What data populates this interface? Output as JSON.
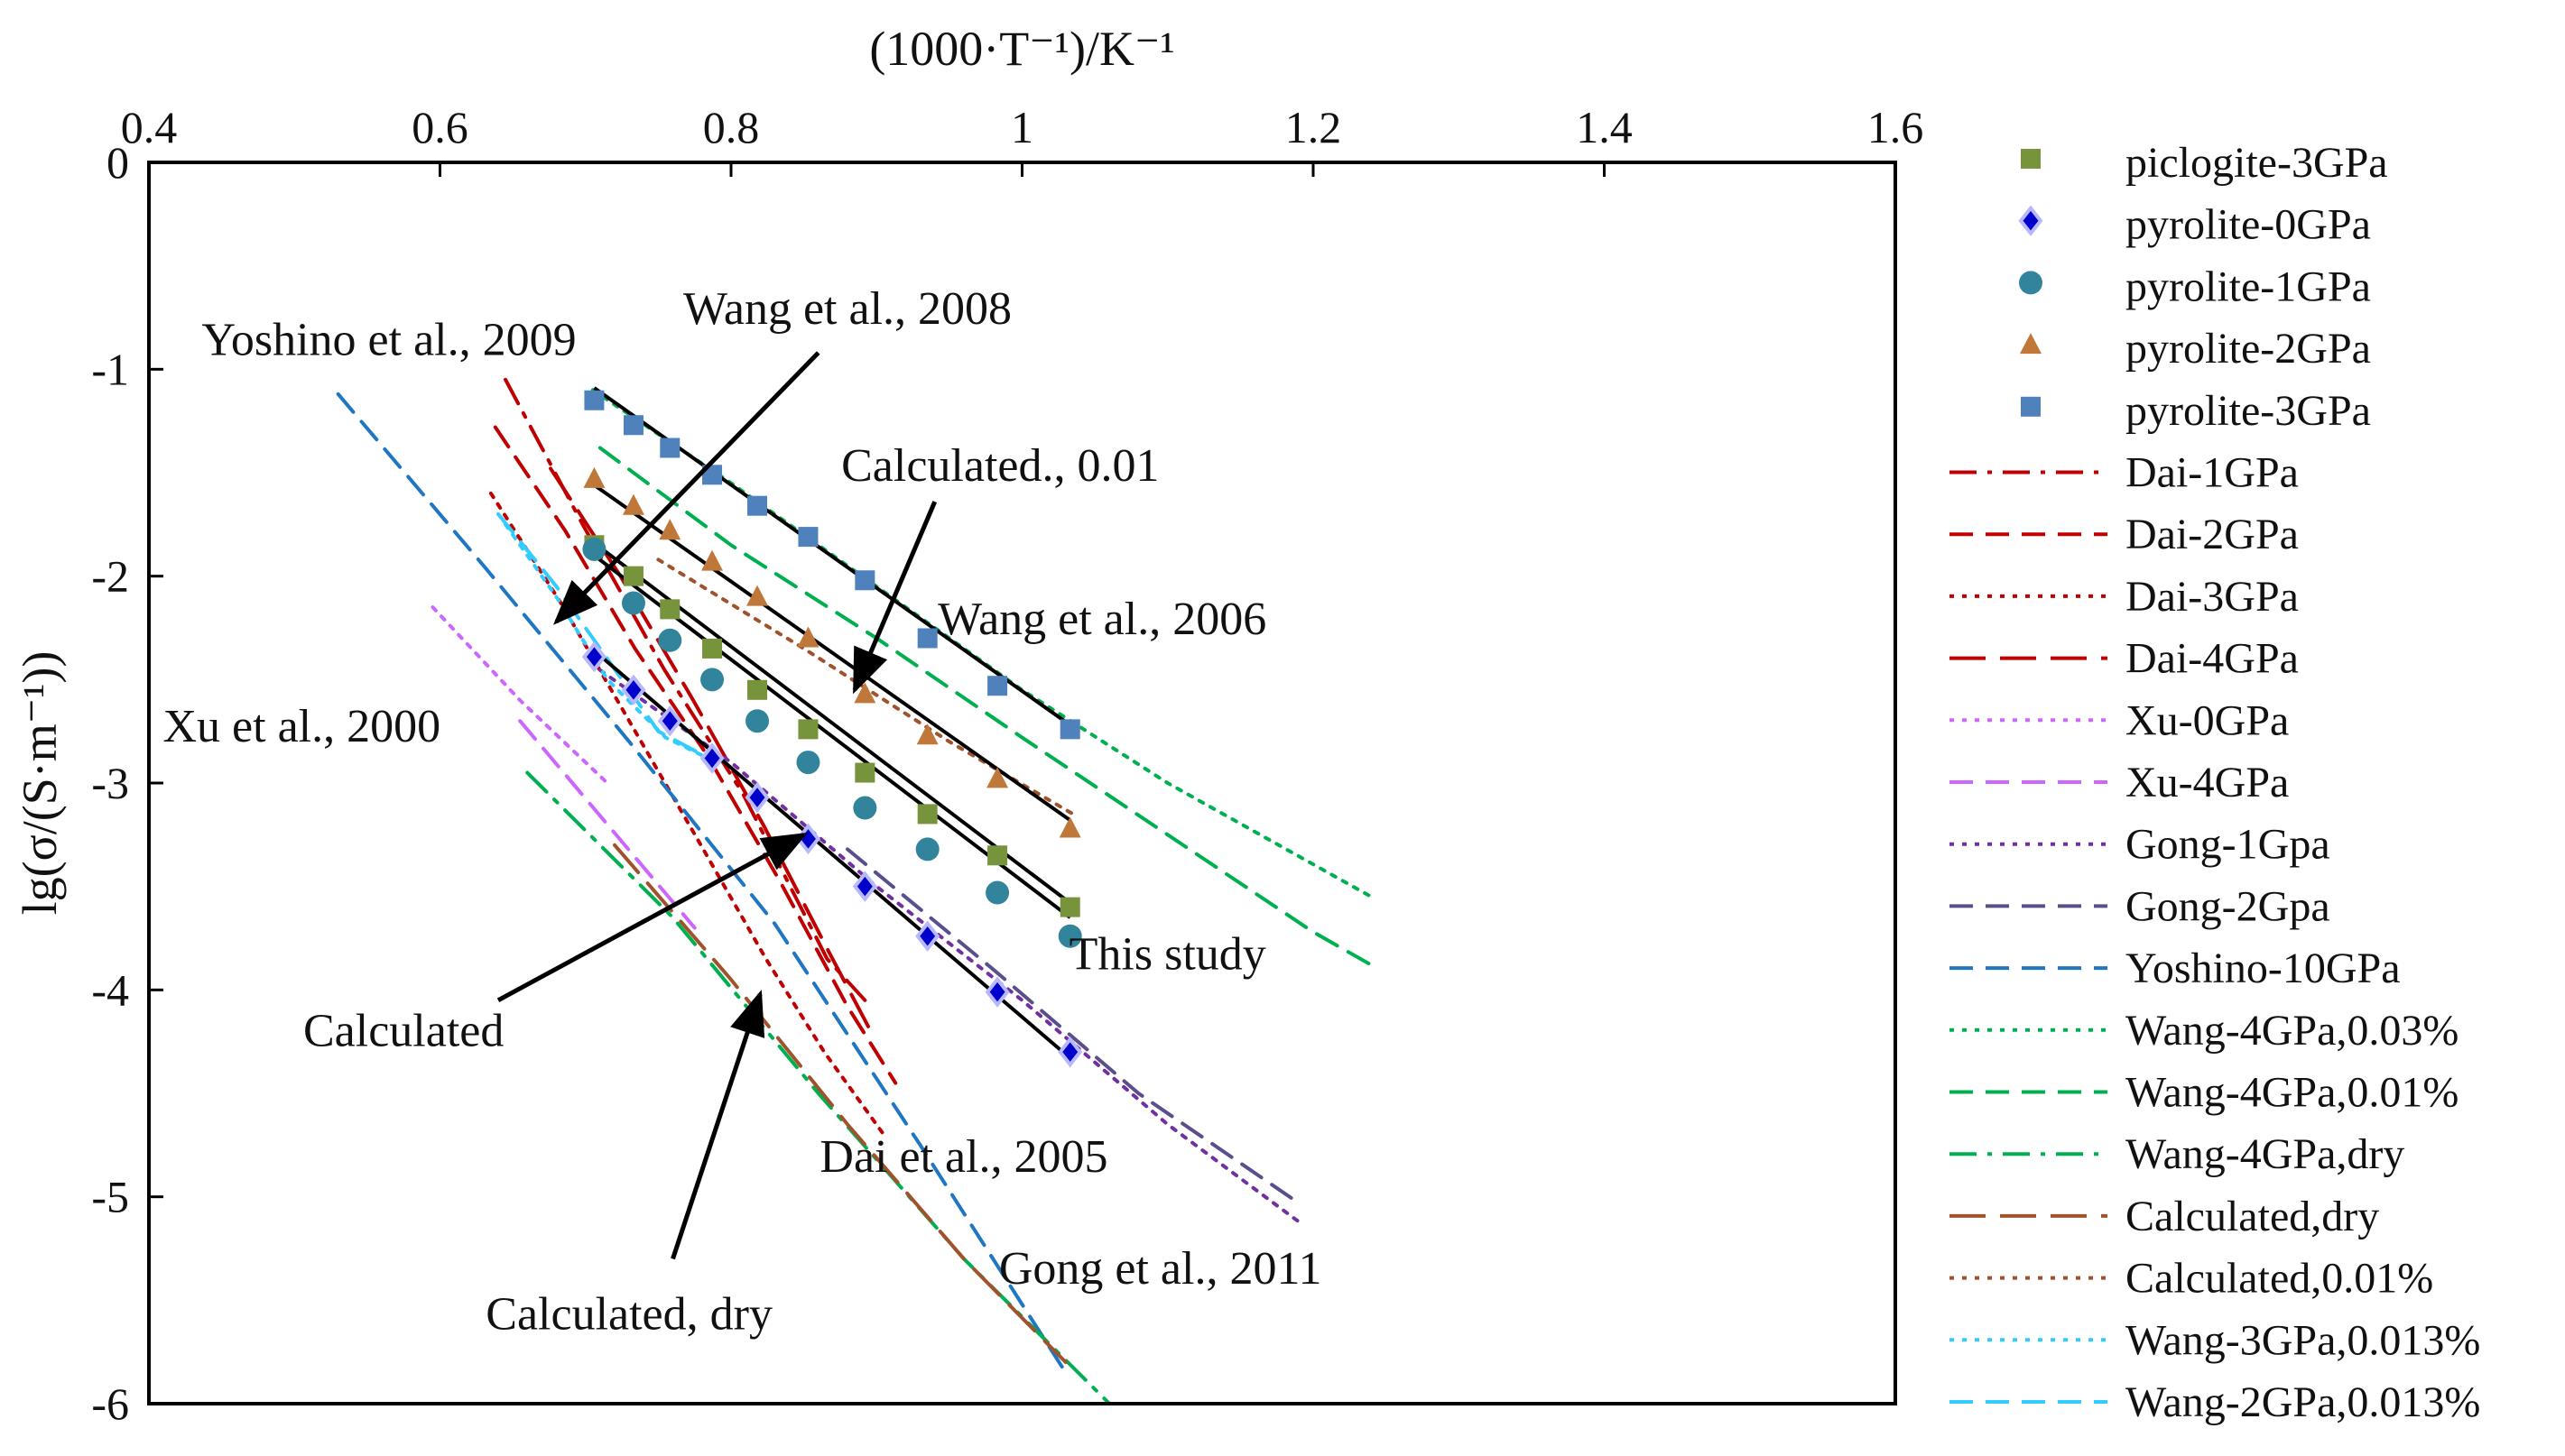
{
  "chart_data": {
    "type": "scatter",
    "title": "",
    "xlabel": "(1000·T⁻¹)/K⁻¹",
    "ylabel": "lg(σ/(S·m⁻¹))",
    "xlim": [
      0.4,
      1.6
    ],
    "ylim": [
      -6,
      0
    ],
    "x_ticks": [
      "0.4",
      "0.6",
      "0.8",
      "1",
      "1.2",
      "1.4",
      "1.6"
    ],
    "y_ticks": [
      "0",
      "-1",
      "-2",
      "-3",
      "-4",
      "-5",
      "-6"
    ],
    "legend_position": "right",
    "point_series": [
      {
        "name": "piclogite-3GPa",
        "marker": "square",
        "color": "#77933C",
        "x": [
          0.706,
          0.733,
          0.758,
          0.787,
          0.818,
          0.853,
          0.892,
          0.935,
          0.983,
          1.033
        ],
        "y": [
          -1.85,
          -2.0,
          -2.16,
          -2.35,
          -2.55,
          -2.74,
          -2.95,
          -3.15,
          -3.35,
          -3.6
        ]
      },
      {
        "name": "pyrolite-0GPa",
        "marker": "diamond",
        "color": "#0000CC",
        "x": [
          0.706,
          0.733,
          0.758,
          0.787,
          0.818,
          0.853,
          0.892,
          0.935,
          0.983,
          1.033
        ],
        "y": [
          -2.39,
          -2.55,
          -2.7,
          -2.88,
          -3.07,
          -3.27,
          -3.5,
          -3.74,
          -4.01,
          -4.3
        ]
      },
      {
        "name": "pyrolite-1GPa",
        "marker": "circle",
        "color": "#31849B",
        "x": [
          0.706,
          0.733,
          0.758,
          0.787,
          0.818,
          0.853,
          0.892,
          0.935,
          0.983,
          1.033
        ],
        "y": [
          -1.87,
          -2.13,
          -2.31,
          -2.5,
          -2.7,
          -2.9,
          -3.12,
          -3.32,
          -3.53,
          -3.74
        ]
      },
      {
        "name": "pyrolite-2GPa",
        "marker": "triangle",
        "color": "#C0783A",
        "x": [
          0.706,
          0.733,
          0.758,
          0.787,
          0.818,
          0.853,
          0.892,
          0.935,
          0.983,
          1.033
        ],
        "y": [
          -1.53,
          -1.66,
          -1.78,
          -1.93,
          -2.1,
          -2.3,
          -2.57,
          -2.77,
          -2.98,
          -3.22
        ]
      },
      {
        "name": "pyrolite-3GPa",
        "marker": "square",
        "color": "#4F81BD",
        "x": [
          0.706,
          0.733,
          0.758,
          0.787,
          0.818,
          0.853,
          0.892,
          0.935,
          0.983,
          1.033
        ],
        "y": [
          -1.15,
          -1.27,
          -1.38,
          -1.51,
          -1.66,
          -1.81,
          -2.02,
          -2.3,
          -2.53,
          -2.74
        ]
      }
    ],
    "line_series": [
      {
        "name": "Dai-1GPa",
        "dash": "dashdot",
        "color": "#C00000",
        "x": [
          0.645,
          0.698,
          0.754,
          0.808,
          0.866,
          0.892
        ],
        "y": [
          -1.05,
          -1.75,
          -2.45,
          -3.05,
          -3.85,
          -4.05
        ]
      },
      {
        "name": "Dai-2GPa",
        "dash": "dash",
        "color": "#C00000",
        "x": [
          0.638,
          0.686,
          0.734,
          0.784,
          0.834,
          0.88,
          0.913
        ],
        "y": [
          -1.28,
          -1.78,
          -2.35,
          -2.87,
          -3.48,
          -4.08,
          -4.45
        ]
      },
      {
        "name": "Dai-3GPa",
        "dash": "dot",
        "color": "#C00000",
        "x": [
          0.635,
          0.684,
          0.73,
          0.776,
          0.824,
          0.864,
          0.905
        ],
        "y": [
          -1.6,
          -2.14,
          -2.7,
          -3.26,
          -3.85,
          -4.3,
          -4.7
        ]
      },
      {
        "name": "Dai-4GPa",
        "dash": "longdash",
        "color": "#C00000",
        "x": [
          0.676,
          0.724,
          0.774,
          0.822,
          0.866,
          0.896
        ],
        "y": [
          -1.48,
          -2.0,
          -2.6,
          -3.2,
          -3.8,
          -4.2
        ]
      },
      {
        "name": "Xu-0GPa",
        "dash": "dot",
        "color": "#CC66FF",
        "x": [
          0.595,
          0.655,
          0.715
        ],
        "y": [
          -2.15,
          -2.6,
          -3.0
        ]
      },
      {
        "name": "Xu-4GPa",
        "dash": "dash",
        "color": "#CC66FF",
        "x": [
          0.655,
          0.715,
          0.775
        ],
        "y": [
          -2.7,
          -3.2,
          -3.7
        ]
      },
      {
        "name": "Gong-1Gpa",
        "dash": "dot",
        "color": "#7030A0",
        "x": [
          0.703,
          0.8,
          0.9,
          1.0,
          1.1,
          1.19
        ],
        "y": [
          -2.42,
          -2.9,
          -3.5,
          -4.05,
          -4.65,
          -5.12
        ]
      },
      {
        "name": "Gong-2Gpa",
        "dash": "dash",
        "color": "#5A4E8C",
        "x": [
          0.88,
          0.98,
          1.08,
          1.19
        ],
        "y": [
          -3.32,
          -3.9,
          -4.5,
          -5.03
        ]
      },
      {
        "name": "Yoshino-10GPa",
        "dash": "dash",
        "color": "#1F77C4",
        "x": [
          0.53,
          0.63,
          0.73,
          0.83,
          0.93,
          1.03
        ],
        "y": [
          -1.12,
          -1.95,
          -2.8,
          -3.68,
          -4.75,
          -5.85
        ]
      },
      {
        "name": "Wang-4GPa,0.03%",
        "dash": "dot",
        "color": "#00B050",
        "x": [
          0.705,
          0.8,
          0.9,
          1.0,
          1.1,
          1.24
        ],
        "y": [
          -1.1,
          -1.55,
          -2.05,
          -2.55,
          -3.0,
          -3.55
        ]
      },
      {
        "name": "Wang-4GPa,0.01%",
        "dash": "dash",
        "color": "#00B050",
        "x": [
          0.71,
          0.8,
          0.9,
          1.0,
          1.1,
          1.2,
          1.245
        ],
        "y": [
          -1.38,
          -1.85,
          -2.3,
          -2.78,
          -3.25,
          -3.72,
          -3.9
        ]
      },
      {
        "name": "Wang-4GPa,dry",
        "dash": "dashdot",
        "color": "#00B050",
        "x": [
          0.66,
          0.76,
          0.86,
          0.96,
          1.06
        ],
        "y": [
          -2.95,
          -3.65,
          -4.5,
          -5.3,
          -6.0
        ]
      },
      {
        "name": "Calculated,dry",
        "dash": "longdash",
        "color": "#A0522D",
        "x": [
          0.72,
          0.8,
          0.88,
          0.96,
          1.03
        ],
        "y": [
          -3.3,
          -3.95,
          -4.65,
          -5.3,
          -5.8
        ]
      },
      {
        "name": "Calculated,0.01%",
        "dash": "dot",
        "color": "#A0522D",
        "x": [
          0.75,
          0.85,
          0.95,
          1.035
        ],
        "y": [
          -1.92,
          -2.35,
          -2.8,
          -3.15
        ]
      },
      {
        "name": "Wang-3GPa,0.013%",
        "dash": "dot",
        "color": "#33CCFF",
        "x": [
          0.645,
          0.68,
          0.715,
          0.755,
          0.79
        ],
        "y": [
          -1.75,
          -2.1,
          -2.5,
          -2.78,
          -2.9
        ]
      },
      {
        "name": "Wang-2GPa,0.013%",
        "dash": "dash",
        "color": "#33CCFF",
        "x": [
          0.64,
          0.68,
          0.72,
          0.75,
          0.79
        ],
        "y": [
          -1.7,
          -2.05,
          -2.45,
          -2.75,
          -2.9
        ]
      }
    ],
    "fit_lines": [
      {
        "name": "fit-pyrolite-3GPa",
        "x": [
          0.706,
          1.033
        ],
        "y": [
          -1.09,
          -2.72
        ]
      },
      {
        "name": "fit-pyrolite-2GPa",
        "x": [
          0.706,
          1.033
        ],
        "y": [
          -1.56,
          -3.18
        ]
      },
      {
        "name": "fit-pyrolite-1GPa",
        "x": [
          0.706,
          1.033
        ],
        "y": [
          -1.9,
          -3.65
        ]
      },
      {
        "name": "fit-piclogite-3GPa",
        "x": [
          0.706,
          1.033
        ],
        "y": [
          -1.84,
          -3.58
        ]
      },
      {
        "name": "fit-pyrolite-0GPa",
        "x": [
          0.706,
          1.033
        ],
        "y": [
          -2.36,
          -4.33
        ]
      }
    ],
    "annotations": [
      {
        "text": "Wang et al., 2008",
        "x": 0.88,
        "y": -0.78
      },
      {
        "text": "Yoshino et al., 2009",
        "x": 0.565,
        "y": -0.93
      },
      {
        "text": "Calculated., 0.01",
        "x": 0.985,
        "y": -1.54
      },
      {
        "text": "Wang et al., 2006",
        "x": 1.055,
        "y": -2.28
      },
      {
        "text": "Xu et al., 2000",
        "x": 0.505,
        "y": -2.8
      },
      {
        "text": "This study",
        "x": 1.1,
        "y": -3.9
      },
      {
        "text": "Calculated",
        "x": 0.575,
        "y": -4.27
      },
      {
        "text": "Dai et al., 2005",
        "x": 0.96,
        "y": -4.88
      },
      {
        "text": "Gong et al., 2011",
        "x": 1.095,
        "y": -5.42
      },
      {
        "text": "Calculated, dry",
        "x": 0.73,
        "y": -5.64
      }
    ],
    "arrows": [
      {
        "name": "arrow-wang-2008",
        "from": [
          0.86,
          -0.92
        ],
        "to": [
          0.68,
          -2.22
        ]
      },
      {
        "name": "arrow-calculated-001",
        "from": [
          0.94,
          -1.64
        ],
        "to": [
          0.885,
          -2.55
        ]
      },
      {
        "name": "arrow-calculated",
        "from": [
          0.64,
          -4.05
        ],
        "to": [
          0.85,
          -3.25
        ]
      },
      {
        "name": "arrow-calculated-dry",
        "from": [
          0.76,
          -5.3
        ],
        "to": [
          0.82,
          -4.02
        ]
      }
    ]
  }
}
